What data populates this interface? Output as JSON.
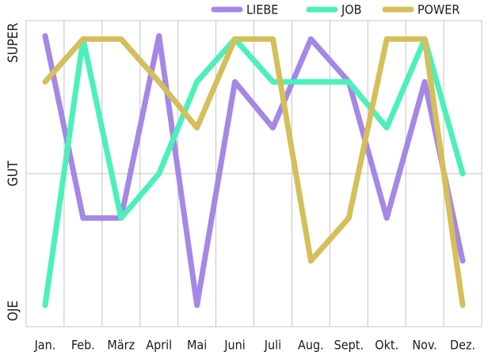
{
  "chart_data": {
    "type": "line",
    "title": "",
    "xlabel": "",
    "ylabel": "",
    "categories": [
      "Jan.",
      "Feb.",
      "März",
      "April",
      "Mai",
      "Juni",
      "Juli",
      "Aug.",
      "Sept.",
      "Okt.",
      "Nov.",
      "Dez."
    ],
    "y_levels": [
      "OJE",
      "GUT",
      "SUPER"
    ],
    "ylim": [
      0,
      2
    ],
    "grid": true,
    "legend_position": "top-right",
    "series": [
      {
        "name": "LIEBE",
        "color": "#a587e6",
        "values": [
          1.9,
          0.71,
          0.71,
          1.9,
          0.14,
          1.6,
          1.3,
          1.88,
          1.6,
          0.71,
          1.6,
          0.43
        ]
      },
      {
        "name": "JOB",
        "color": "#4bf0ba",
        "values": [
          0.14,
          1.88,
          0.71,
          1.0,
          1.6,
          1.88,
          1.6,
          1.6,
          1.6,
          1.3,
          1.88,
          1.0
        ]
      },
      {
        "name": "POWER",
        "color": "#d4bf5a",
        "values": [
          1.6,
          1.88,
          1.88,
          1.6,
          1.3,
          1.88,
          1.88,
          0.43,
          0.71,
          1.88,
          1.88,
          0.14
        ]
      }
    ]
  }
}
